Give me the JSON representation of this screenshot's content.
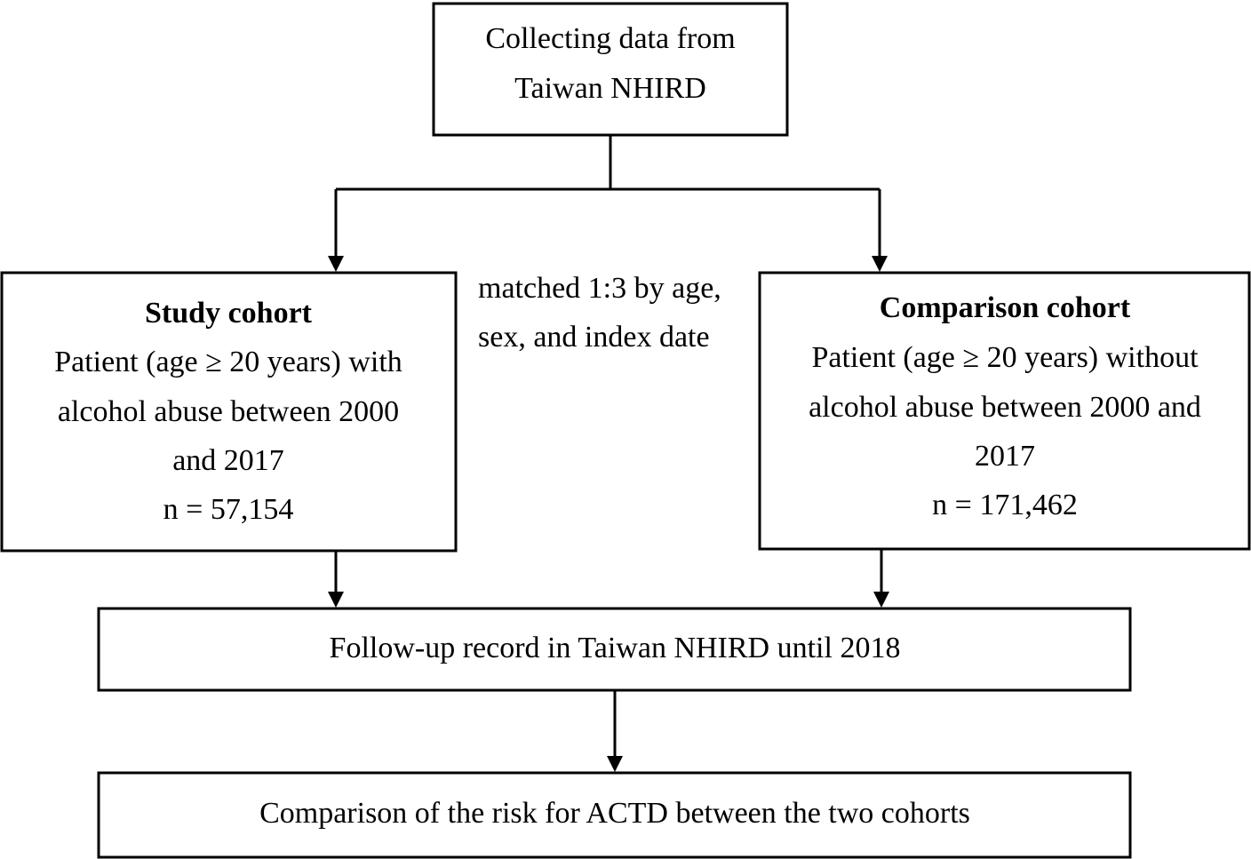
{
  "nodes": [
    {
      "lines": [
        "Collecting data from",
        "Taiwan NHIRD"
      ]
    },
    {
      "title": "Study cohort",
      "lines": [
        "Patient (age ≥ 20 years) with",
        "alcohol abuse between 2000",
        "and 2017",
        "n = 57,154"
      ]
    },
    {
      "title": "Comparison cohort",
      "lines": [
        "Patient (age ≥ 20 years) without",
        "alcohol abuse between 2000 and",
        "2017",
        "n = 171,462"
      ]
    },
    {
      "lines": [
        "Follow-up record in Taiwan NHIRD until 2018"
      ]
    },
    {
      "lines": [
        "Comparison of the risk for ACTD between the two cohorts"
      ]
    }
  ],
  "annotation": {
    "lines": [
      "matched 1:3 by age,",
      "sex, and index date"
    ]
  }
}
